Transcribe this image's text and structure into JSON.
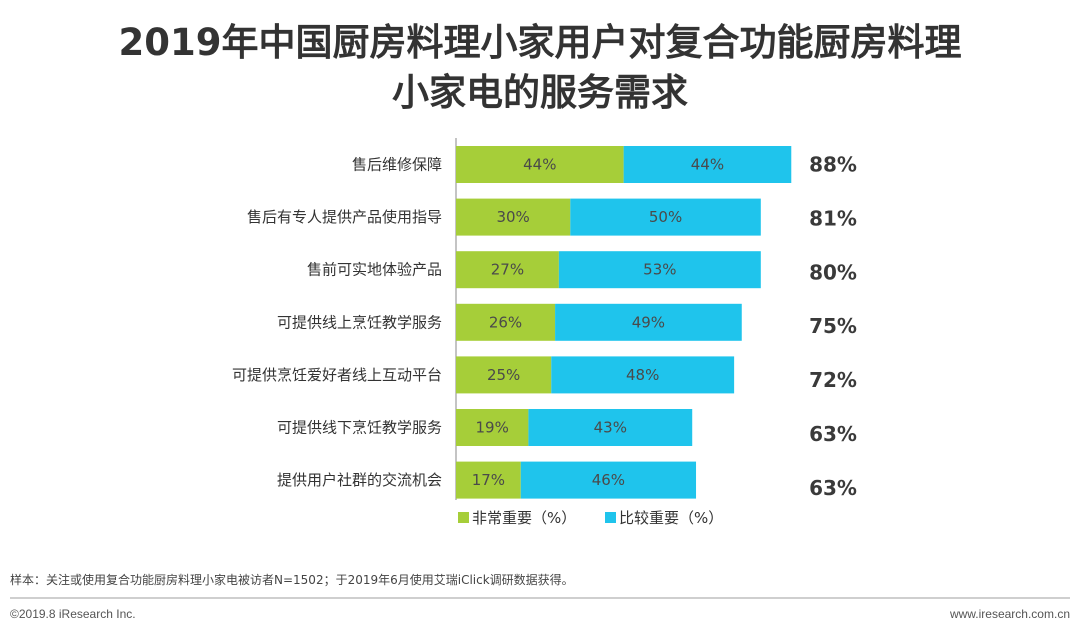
{
  "title_line1": "2019年中国厨房料理小家用户对复合功能厨房料理",
  "title_line2": "小家电的服务需求",
  "colors": {
    "very_important": "#a6ce39",
    "important": "#1fc4ec",
    "axis": "#888888"
  },
  "chart_data": {
    "type": "bar",
    "orientation": "horizontal",
    "stacked": true,
    "categories": [
      "售后维修保障",
      "售后有专人提供产品使用指导",
      "售前可实地体验产品",
      "可提供线上烹饪教学服务",
      "可提供烹饪爱好者线上互动平台",
      "可提供线下烹饪教学服务",
      "提供用户社群的交流机会"
    ],
    "series": [
      {
        "name": "非常重要（%）",
        "values": [
          44,
          30,
          27,
          26,
          25,
          19,
          17
        ]
      },
      {
        "name": "比较重要（%）",
        "values": [
          44,
          50,
          53,
          49,
          48,
          43,
          46
        ]
      }
    ],
    "totals": [
      "88%",
      "81%",
      "80%",
      "75%",
      "72%",
      "63%",
      "63%"
    ],
    "xlim": [
      0,
      100
    ],
    "grid": false,
    "legend_position": "bottom"
  },
  "note": "样本：关注或使用复合功能厨房料理小家电被访者N=1502；于2019年6月使用艾瑞iClick调研数据获得。",
  "footer_left": "©2019.8 iResearch Inc.",
  "footer_right": "www.iresearch.com.cn"
}
